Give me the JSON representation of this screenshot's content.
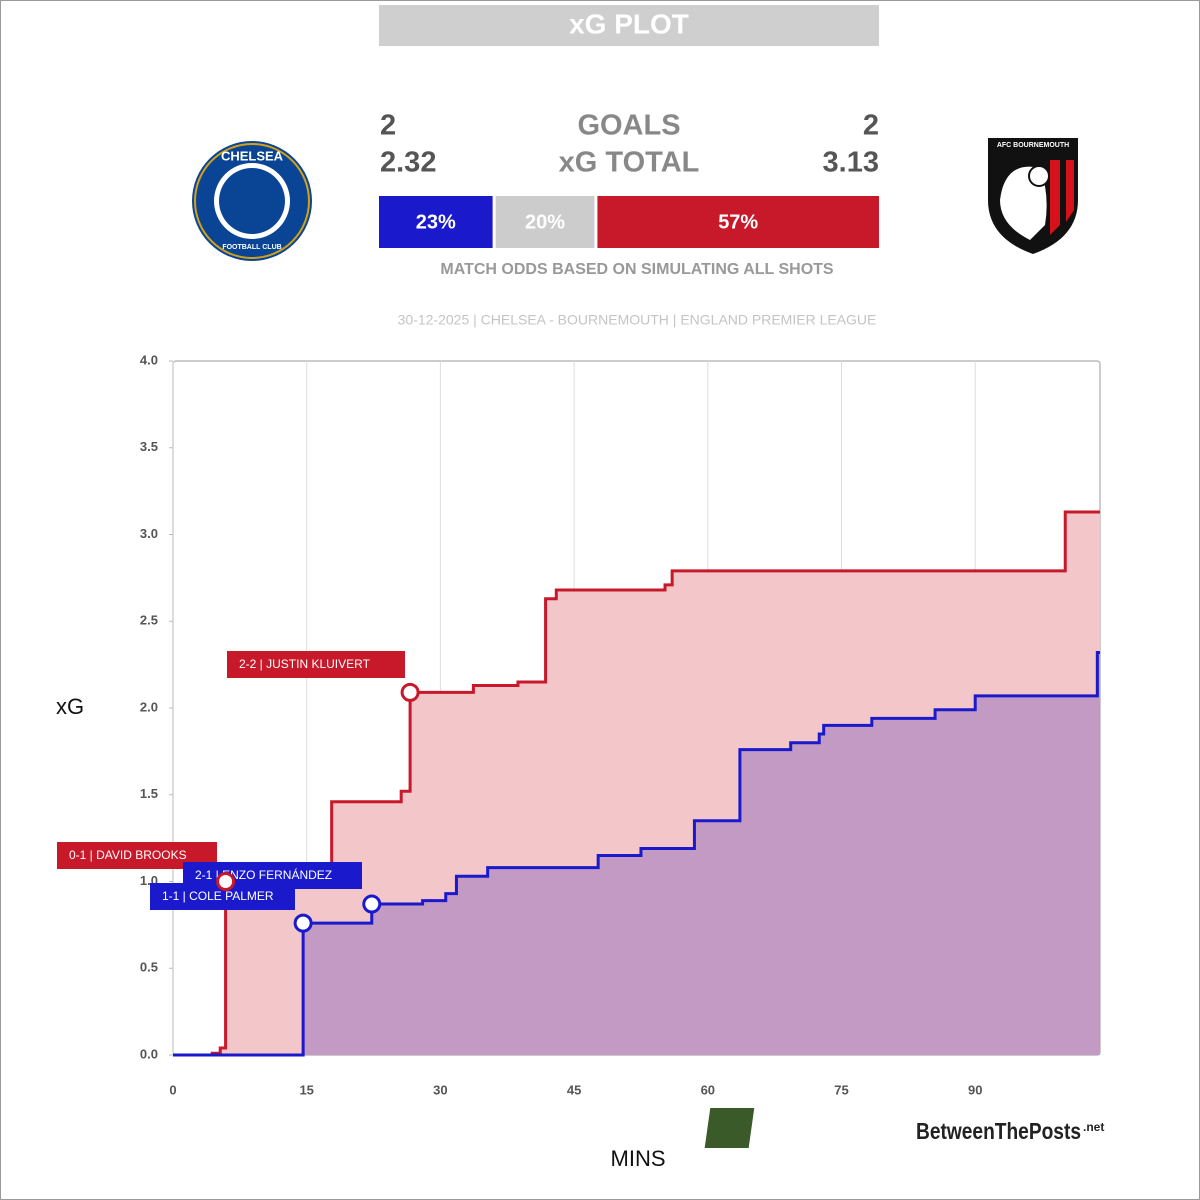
{
  "header": {
    "title": "xG PLOT",
    "home_goals": "2",
    "goals_label": "GOALS",
    "away_goals": "2",
    "home_xg": "2.32",
    "xg_label": "xG TOTAL",
    "away_xg": "3.13",
    "home_crest": "CHELSEA",
    "home_crest_sub": "FOOTBALL CLUB",
    "away_crest": "AFC BOURNEMOUTH"
  },
  "odds": {
    "values": [
      23,
      20,
      57
    ],
    "value_labels": [
      "23%",
      "20%",
      "57%"
    ],
    "colors": [
      "#1a1acc",
      "#cccccc",
      "#c8192a"
    ],
    "caption": "MATCH ODDS BASED ON SIMULATING ALL SHOTS"
  },
  "match_info": "30-12-2025 | CHELSEA - BOURNEMOUTH | ENGLAND PREMIER LEAGUE",
  "watermark": {
    "logo": "BTP",
    "name": "BetweenThePosts",
    "suffix": ".net"
  },
  "chart_data": {
    "type": "step",
    "xlabel": "MINS",
    "ylabel": "xG",
    "xlim": [
      0,
      104
    ],
    "ylim": [
      0,
      4
    ],
    "xticks": [
      0,
      15,
      30,
      45,
      60,
      75,
      90
    ],
    "yticks": [
      {
        "value": 0,
        "label": "0.0"
      },
      0.5,
      {
        "value": 1,
        "label": "1.0"
      },
      1.5,
      {
        "value": 2,
        "label": "2.0"
      },
      2.5,
      {
        "value": 3,
        "label": "3.0"
      },
      3.5,
      {
        "value": 4,
        "label": "4.0"
      }
    ],
    "grid": true,
    "series": [
      {
        "color": "#c8192a",
        "fill": "#f3c6c9",
        "x": [
          0,
          4.4,
          5.3,
          5.9,
          16.5,
          17.8,
          25.6,
          26.6,
          33.7,
          38.7,
          41.8,
          43.0,
          55.2,
          56.0,
          100.1
        ],
        "values": [
          0,
          0.01,
          0.04,
          1.0,
          1.1,
          1.46,
          1.52,
          2.09,
          2.13,
          2.15,
          2.63,
          2.68,
          2.71,
          2.79,
          3.13
        ]
      },
      {
        "color": "#1a1acc",
        "fill": "#c29ac3",
        "x": [
          0,
          14.6,
          22.3,
          28.0,
          30.6,
          31.8,
          35.3,
          47.7,
          52.5,
          58.5,
          63.6,
          69.3,
          72.5,
          73.0,
          78.4,
          85.5,
          90.0,
          103.7
        ],
        "values": [
          0,
          0.76,
          0.87,
          0.89,
          0.93,
          1.03,
          1.08,
          1.15,
          1.19,
          1.35,
          1.76,
          1.8,
          1.85,
          1.9,
          1.94,
          1.99,
          2.07,
          2.32
        ]
      }
    ],
    "annotations": [
      {
        "label": "0-1 | DAVID BROOKS",
        "x": 5.9,
        "y": 1.0,
        "color": "#c8192a"
      },
      {
        "label": "2-1 | ENZO FERNÁNDEZ",
        "x": 22.3,
        "y": 0.87,
        "color": "#1a1acc"
      },
      {
        "label": "1-1 | COLE PALMER",
        "x": 14.6,
        "y": 0.76,
        "color": "#1a1acc"
      },
      {
        "label": "2-2 | JUSTIN KLUIVERT",
        "x": 26.6,
        "y": 2.09,
        "color": "#c8192a"
      }
    ]
  }
}
